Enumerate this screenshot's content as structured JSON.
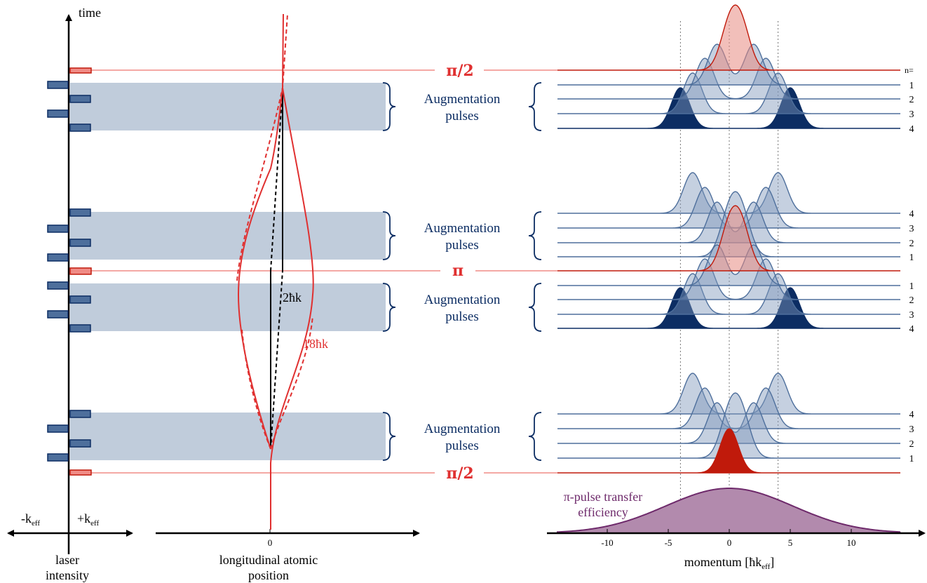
{
  "axes": {
    "time_label": "time",
    "left_minus": "-k",
    "left_plus": "+k",
    "eff_sub": "eff",
    "left_caption_line1": "laser",
    "left_caption_line2": "intensity",
    "middle_caption_line1": "longitudinal atomic",
    "middle_caption_line2": "position",
    "middle_zero": "0",
    "momentum_caption": "momentum [ħk",
    "momentum_caption_end": "]"
  },
  "pulse_labels": {
    "pi_half_top": "π/2",
    "pi_middle": "π",
    "pi_half_bottom": "π/2"
  },
  "augmentation": {
    "line1": "Augmentation",
    "line2": "pulses"
  },
  "arm_labels": {
    "black": "2ħk",
    "red": "18ħk"
  },
  "n_header": "n=",
  "n_labels": {
    "group1": [
      "1",
      "2",
      "3",
      "4"
    ],
    "group2": [
      "4",
      "3",
      "2",
      "1"
    ],
    "group3": [
      "1",
      "2",
      "3",
      "4"
    ],
    "group4": [
      "4",
      "3",
      "2",
      "1"
    ]
  },
  "efficiency": {
    "line1": "π-pulse transfer",
    "line2": "efficiency"
  },
  "momentum_ticks": [
    "-10",
    "-5",
    "0",
    "5",
    "10"
  ],
  "colors": {
    "navy": "#0c2d63",
    "red": "#c01a0b",
    "light_red": "#f08c86",
    "band": "#c0ccdb",
    "purple": "#6e2a6b",
    "purple_fill": "#b28aad"
  }
}
